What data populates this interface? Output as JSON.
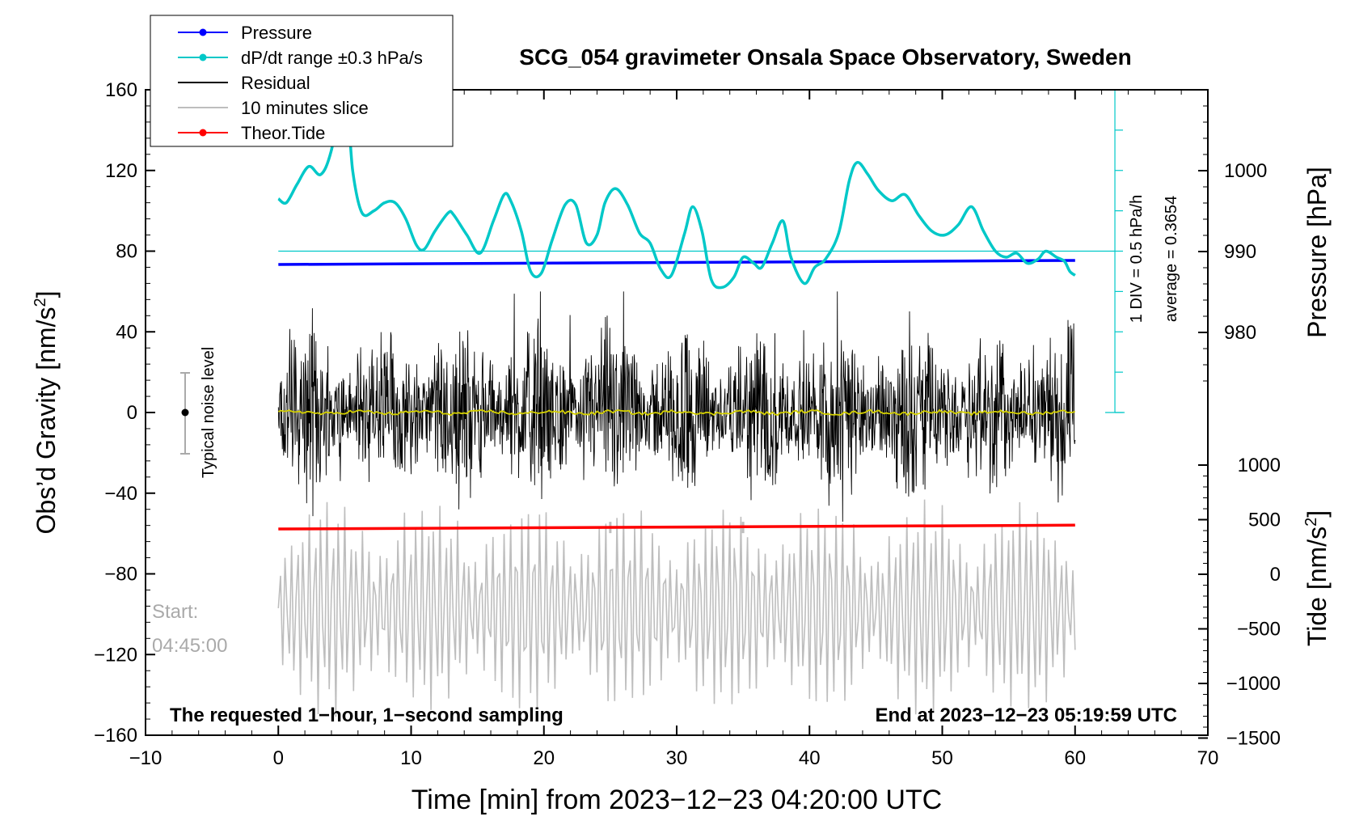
{
  "chart_data": {
    "type": "line",
    "title": "SCG_054 gravimeter Onsala Space Observatory, Sweden",
    "xlabel": "Time [min] from 2023−12−23 04:20:00 UTC",
    "ylabel_left": "Obs’d Gravity [nm/s",
    "ylabel_left_sup": "2",
    "ylabel_left_end": "]",
    "ylabel_pressure": "Pressure [hPa]",
    "ylabel_tide": "Tide [nm/s",
    "ylabel_tide_sup": "2",
    "ylabel_tide_end": "]",
    "xlim": [
      -10,
      70
    ],
    "ylim": [
      -160,
      160
    ],
    "x_ticks": [
      -10,
      0,
      10,
      20,
      30,
      40,
      50,
      60,
      70
    ],
    "x_tick_labels": [
      "−10",
      "0",
      "10",
      "20",
      "30",
      "40",
      "50",
      "60",
      "70"
    ],
    "y_ticks": [
      -160,
      -120,
      -80,
      -40,
      0,
      40,
      80,
      120,
      160
    ],
    "y_tick_labels": [
      "−160",
      "−120",
      "−80",
      "−40",
      "0",
      "40",
      "80",
      "120",
      "160"
    ],
    "pressure_ticks": [
      980,
      990,
      1000
    ],
    "pressure_tick_labels": [
      "980",
      "990",
      "1000"
    ],
    "tide_ticks": [
      -1500,
      -1000,
      -500,
      0,
      500,
      1000
    ],
    "tide_tick_labels": [
      "−1500",
      "−1000",
      "−500",
      "0",
      "500",
      "1000"
    ],
    "legend": [
      {
        "label": "Pressure",
        "color": "#0000ff",
        "marker": true
      },
      {
        "label": "dP/dt range ±0.3 hPa/s",
        "color": "#00c8c8",
        "marker": true
      },
      {
        "label": "Residual",
        "color": "#000000",
        "marker": false
      },
      {
        "label": "10 minutes slice",
        "color": "#bebebe",
        "marker": false
      },
      {
        "label": "Theor.Tide",
        "color": "#ff0000",
        "marker": true
      }
    ],
    "legend_placement": "top-left",
    "dpdt_note_1": "1 DIV = 0.5 hPa/h",
    "dpdt_note_2": "average = 0.3654",
    "noise_label": "Typical noise level",
    "noise_range": [
      -20,
      20
    ],
    "start_label": "Start:",
    "start_time": "04:45:00",
    "bottom_left_note": "The requested 1−hour, 1−second sampling",
    "bottom_right_note": "End at 2023−12−23 05:19:59 UTC",
    "slice_bracket_x": [
      25,
      35
    ],
    "slice_bracket_y": -57,
    "series": [
      {
        "name": "Pressure",
        "color": "#0000ff",
        "axis": "pressure",
        "x": [
          0,
          60
        ],
        "values": [
          988.4,
          988.9
        ]
      },
      {
        "name": "Theor.Tide",
        "color": "#ff0000",
        "axis": "tide",
        "x": [
          0,
          60
        ],
        "values": [
          415,
          450
        ]
      },
      {
        "name": "dP/dt range ±0.3 hPa/s",
        "color": "#00c8c8",
        "axis": "gravity",
        "x": [
          0,
          0.6,
          1.4,
          2.3,
          3.2,
          4,
          5,
          5.6,
          6.3,
          7.2,
          8,
          8.8,
          9.6,
          10.4,
          11,
          11.8,
          12.8,
          13.2,
          14.2,
          15.2,
          16.2,
          17,
          17.5,
          18.3,
          19,
          19.8,
          20.6,
          21.6,
          22.4,
          23.2,
          24,
          24.6,
          25.4,
          26.3,
          27.2,
          28,
          28.8,
          29.6,
          30.6,
          31.2,
          31.9,
          32.6,
          33.4,
          34.3,
          35,
          35.8,
          36.4,
          37.2,
          38,
          38.6,
          39.6,
          40.4,
          41.2,
          42.2,
          43,
          43.6,
          44.4,
          45.2,
          46.2,
          47.2,
          48.2,
          49.2,
          50.2,
          51.2,
          52.2,
          53.1,
          54,
          54.8,
          55.6,
          56.4,
          57.2,
          57.8,
          58.6,
          59.2,
          59.6,
          60
        ],
        "values": [
          106,
          104,
          113,
          122,
          118,
          130,
          162,
          120,
          99,
          100,
          104,
          104,
          96,
          83,
          81,
          90,
          99,
          98,
          88,
          79,
          95,
          108,
          105,
          90,
          70,
          69,
          85,
          103,
          103,
          84,
          88,
          104,
          111,
          103,
          89,
          84,
          71,
          68,
          89,
          102,
          90,
          66,
          62,
          67,
          77,
          74,
          72,
          84,
          95,
          77,
          64,
          72,
          76,
          89,
          115,
          124,
          118,
          110,
          105,
          108,
          98,
          90,
          88,
          93,
          102,
          90,
          80,
          77,
          79,
          74,
          76,
          80,
          77,
          75,
          70,
          68
        ]
      },
      {
        "name": "Residual",
        "color": "#000000",
        "axis": "gravity",
        "x_start": 0,
        "x_end": 60,
        "amplitude_range": [
          -60,
          60
        ]
      },
      {
        "name": "10 minutes slice",
        "color": "#bebebe",
        "axis": "gravity",
        "x_start": 0,
        "x_end": 60,
        "amplitude_range": [
          -150,
          -45
        ]
      }
    ],
    "dpdt_reference_level": 80,
    "grid": false
  }
}
